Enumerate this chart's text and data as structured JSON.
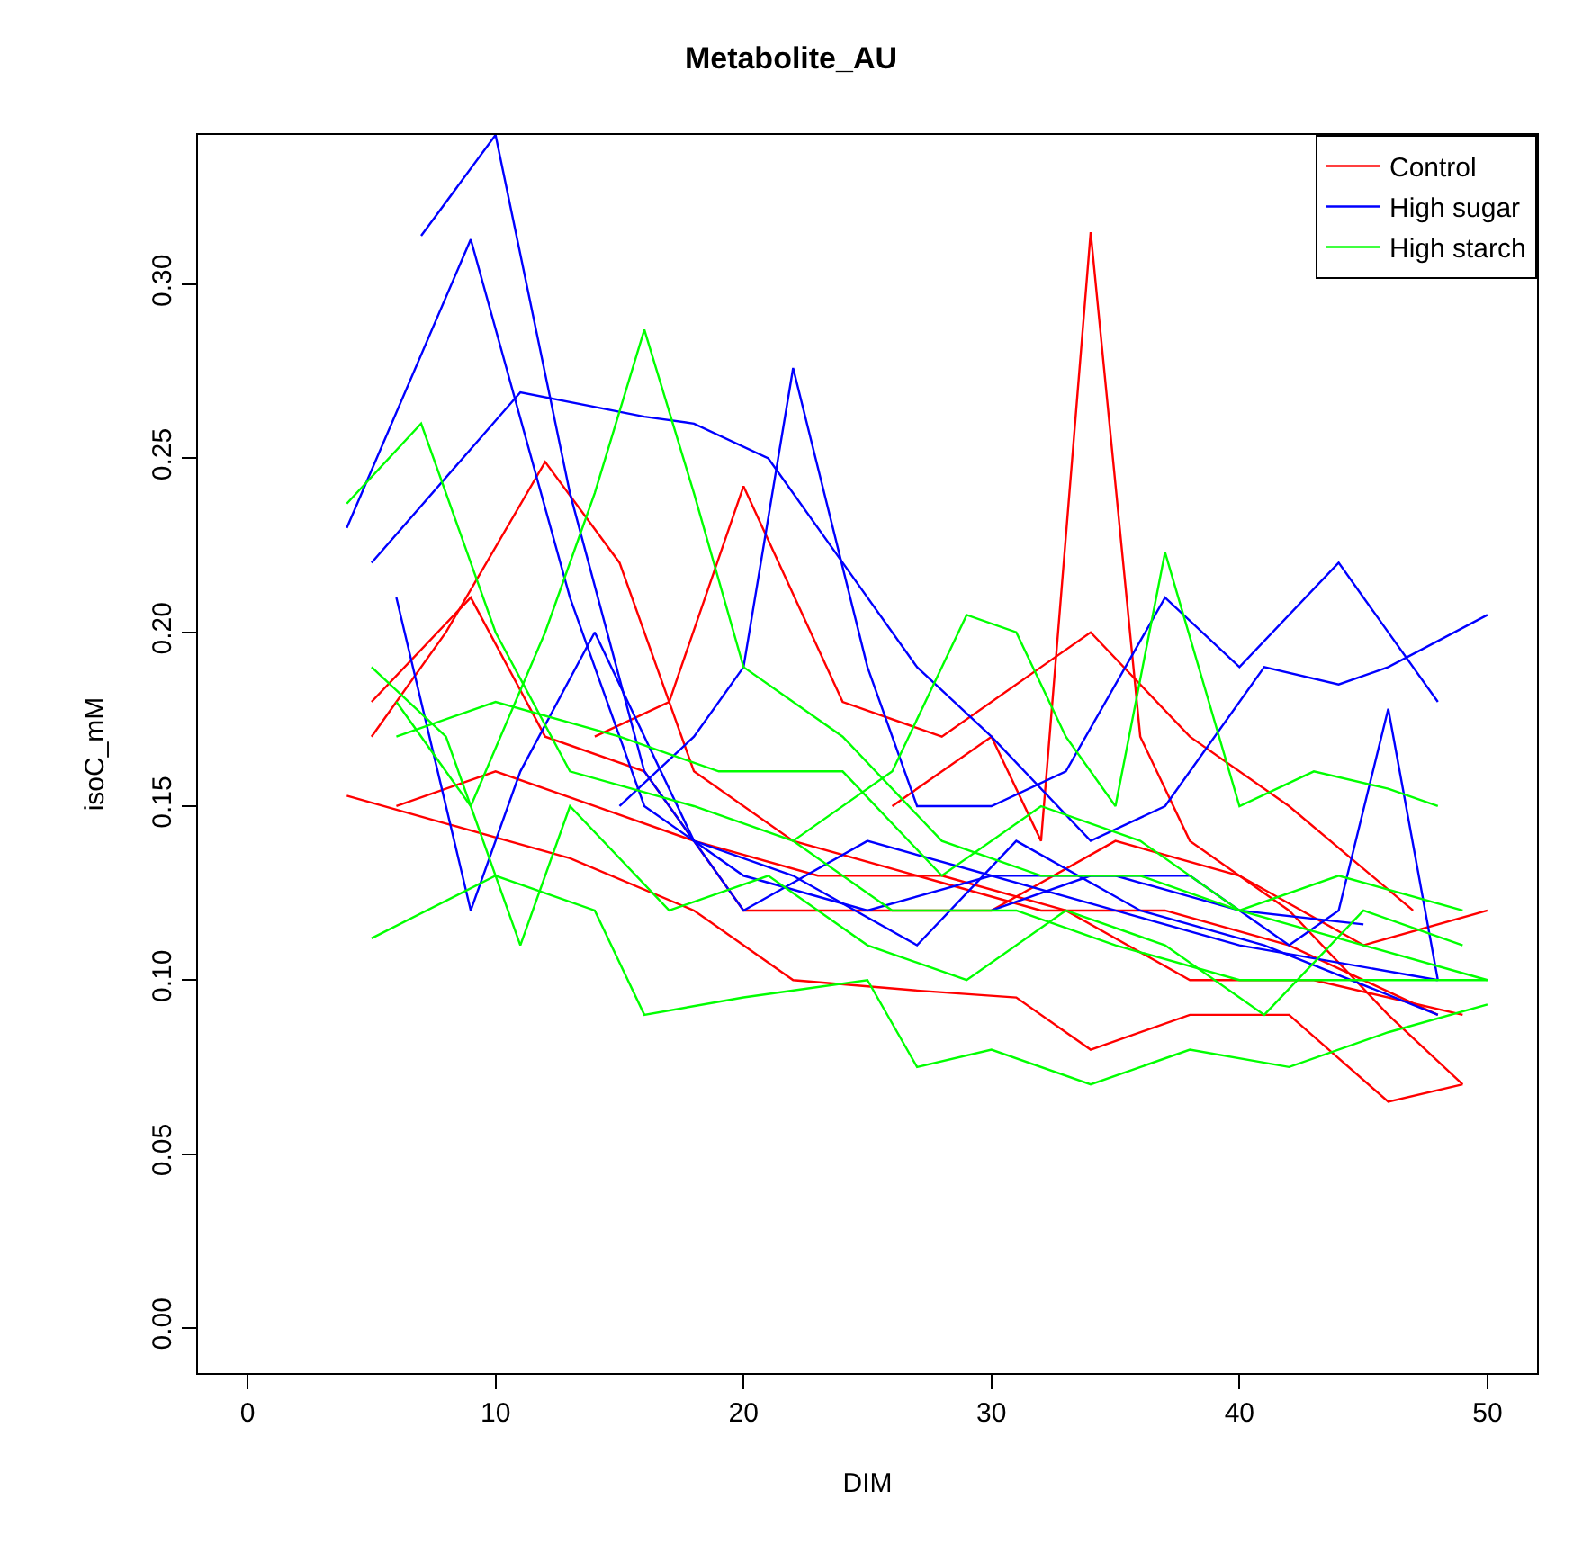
{
  "chart_data": {
    "type": "line",
    "title": "Metabolite_AU",
    "xlabel": "DIM",
    "ylabel": "isoC_mM",
    "xlim": [
      -2,
      52
    ],
    "xticks": [
      0,
      10,
      20,
      30,
      40,
      50
    ],
    "ylim": [
      -0.013,
      0.343
    ],
    "yticks": [
      {
        "value": 0,
        "label": "0.00"
      },
      {
        "value": 0.05,
        "label": "0.05"
      },
      {
        "value": 0.1,
        "label": "0.10"
      },
      {
        "value": 0.15,
        "label": "0.15"
      },
      {
        "value": 0.2,
        "label": "0.20"
      },
      {
        "value": 0.25,
        "label": "0.25"
      },
      {
        "value": 0.3,
        "label": "0.30"
      }
    ],
    "legend": "top right",
    "marker": "none",
    "line_style": "solid",
    "series": [
      {
        "name": "Control",
        "color": "#ff0000",
        "x": [
          26,
          30,
          32,
          34,
          36,
          38,
          42,
          46,
          49
        ],
        "values": [
          0.15,
          0.17,
          0.14,
          0.315,
          0.17,
          0.14,
          0.12,
          0.09,
          0.07
        ]
      },
      {
        "color": "#ff0000",
        "x": [
          14,
          17,
          20,
          24,
          28,
          32,
          34,
          38,
          42,
          47
        ],
        "values": [
          0.17,
          0.18,
          0.242,
          0.18,
          0.17,
          0.19,
          0.2,
          0.17,
          0.15,
          0.12
        ]
      },
      {
        "color": "#ff0000",
        "x": [
          5,
          8,
          12,
          15,
          18,
          22,
          27,
          32,
          37,
          42,
          48
        ],
        "values": [
          0.17,
          0.2,
          0.249,
          0.22,
          0.16,
          0.14,
          0.13,
          0.12,
          0.12,
          0.11,
          0.09
        ]
      },
      {
        "color": "#ff0000",
        "x": [
          4,
          8,
          13,
          18,
          22,
          27,
          31,
          34,
          38,
          42,
          46,
          49
        ],
        "values": [
          0.153,
          0.145,
          0.135,
          0.12,
          0.1,
          0.097,
          0.095,
          0.08,
          0.09,
          0.09,
          0.065,
          0.07
        ]
      },
      {
        "color": "#ff0000",
        "x": [
          5,
          9,
          12,
          16,
          20,
          25,
          30,
          35,
          40,
          45,
          50
        ],
        "values": [
          0.18,
          0.21,
          0.17,
          0.16,
          0.12,
          0.12,
          0.12,
          0.14,
          0.13,
          0.11,
          0.12
        ]
      },
      {
        "color": "#ff0000",
        "x": [
          6,
          10,
          14,
          18,
          23,
          28,
          33,
          38,
          43,
          49
        ],
        "values": [
          0.15,
          0.16,
          0.15,
          0.14,
          0.13,
          0.13,
          0.12,
          0.1,
          0.1,
          0.09
        ]
      },
      {
        "name": "High sugar",
        "color": "#0000ff",
        "x": [
          7,
          10,
          13,
          16,
          20,
          25,
          30,
          35,
          40,
          45
        ],
        "values": [
          0.314,
          0.343,
          0.24,
          0.16,
          0.12,
          0.14,
          0.13,
          0.13,
          0.12,
          0.116
        ]
      },
      {
        "color": "#0000ff",
        "x": [
          4,
          9,
          13,
          16,
          20,
          25,
          30,
          35,
          40,
          48
        ],
        "values": [
          0.23,
          0.313,
          0.21,
          0.15,
          0.13,
          0.12,
          0.13,
          0.12,
          0.11,
          0.1
        ]
      },
      {
        "color": "#0000ff",
        "x": [
          5,
          11,
          16,
          18,
          21,
          24,
          27,
          30,
          34,
          37,
          41,
          44,
          46,
          50
        ],
        "values": [
          0.22,
          0.269,
          0.262,
          0.26,
          0.25,
          0.22,
          0.19,
          0.17,
          0.14,
          0.15,
          0.19,
          0.185,
          0.19,
          0.205
        ]
      },
      {
        "color": "#0000ff",
        "x": [
          15,
          18,
          20,
          22,
          25,
          27,
          30,
          33,
          37,
          40,
          44,
          48
        ],
        "values": [
          0.15,
          0.17,
          0.19,
          0.276,
          0.19,
          0.15,
          0.15,
          0.16,
          0.21,
          0.19,
          0.22,
          0.18
        ]
      },
      {
        "color": "#0000ff",
        "x": [
          30,
          34,
          38,
          42,
          44,
          46,
          48
        ],
        "values": [
          0.12,
          0.13,
          0.13,
          0.11,
          0.12,
          0.178,
          0.1
        ]
      },
      {
        "color": "#0000ff",
        "x": [
          6,
          9,
          11,
          14,
          18,
          22,
          27,
          31,
          36,
          41,
          48
        ],
        "values": [
          0.21,
          0.12,
          0.16,
          0.2,
          0.14,
          0.13,
          0.11,
          0.14,
          0.12,
          0.11,
          0.09
        ]
      },
      {
        "name": "High starch",
        "color": "#00ff00",
        "x": [
          6,
          9,
          12,
          14,
          16,
          18,
          20,
          24,
          28,
          32,
          36,
          40,
          45,
          50
        ],
        "values": [
          0.18,
          0.15,
          0.2,
          0.24,
          0.287,
          0.24,
          0.19,
          0.17,
          0.14,
          0.13,
          0.13,
          0.12,
          0.11,
          0.1
        ]
      },
      {
        "color": "#00ff00",
        "x": [
          5,
          10,
          14,
          16,
          20,
          25,
          27,
          30,
          34,
          38,
          42,
          46,
          50
        ],
        "values": [
          0.112,
          0.13,
          0.12,
          0.09,
          0.095,
          0.1,
          0.075,
          0.08,
          0.07,
          0.08,
          0.075,
          0.085,
          0.093
        ]
      },
      {
        "color": "#00ff00",
        "x": [
          22,
          26,
          29,
          31,
          33,
          35,
          37,
          40,
          43,
          46,
          48
        ],
        "values": [
          0.14,
          0.16,
          0.205,
          0.2,
          0.17,
          0.15,
          0.223,
          0.15,
          0.16,
          0.155,
          0.15
        ]
      },
      {
        "color": "#00ff00",
        "x": [
          4,
          7,
          10,
          13,
          18,
          22,
          26,
          31,
          35,
          40,
          45,
          50
        ],
        "values": [
          0.237,
          0.26,
          0.2,
          0.16,
          0.15,
          0.14,
          0.12,
          0.12,
          0.11,
          0.1,
          0.1,
          0.1
        ]
      },
      {
        "color": "#00ff00",
        "x": [
          5,
          8,
          11,
          13,
          17,
          21,
          25,
          29,
          33,
          37,
          41,
          45,
          49
        ],
        "values": [
          0.19,
          0.17,
          0.11,
          0.15,
          0.12,
          0.13,
          0.11,
          0.1,
          0.12,
          0.11,
          0.09,
          0.12,
          0.11
        ]
      },
      {
        "color": "#00ff00",
        "x": [
          6,
          10,
          15,
          19,
          24,
          28,
          32,
          36,
          40,
          44,
          49
        ],
        "values": [
          0.17,
          0.18,
          0.17,
          0.16,
          0.16,
          0.13,
          0.15,
          0.14,
          0.12,
          0.13,
          0.12
        ]
      }
    ]
  }
}
